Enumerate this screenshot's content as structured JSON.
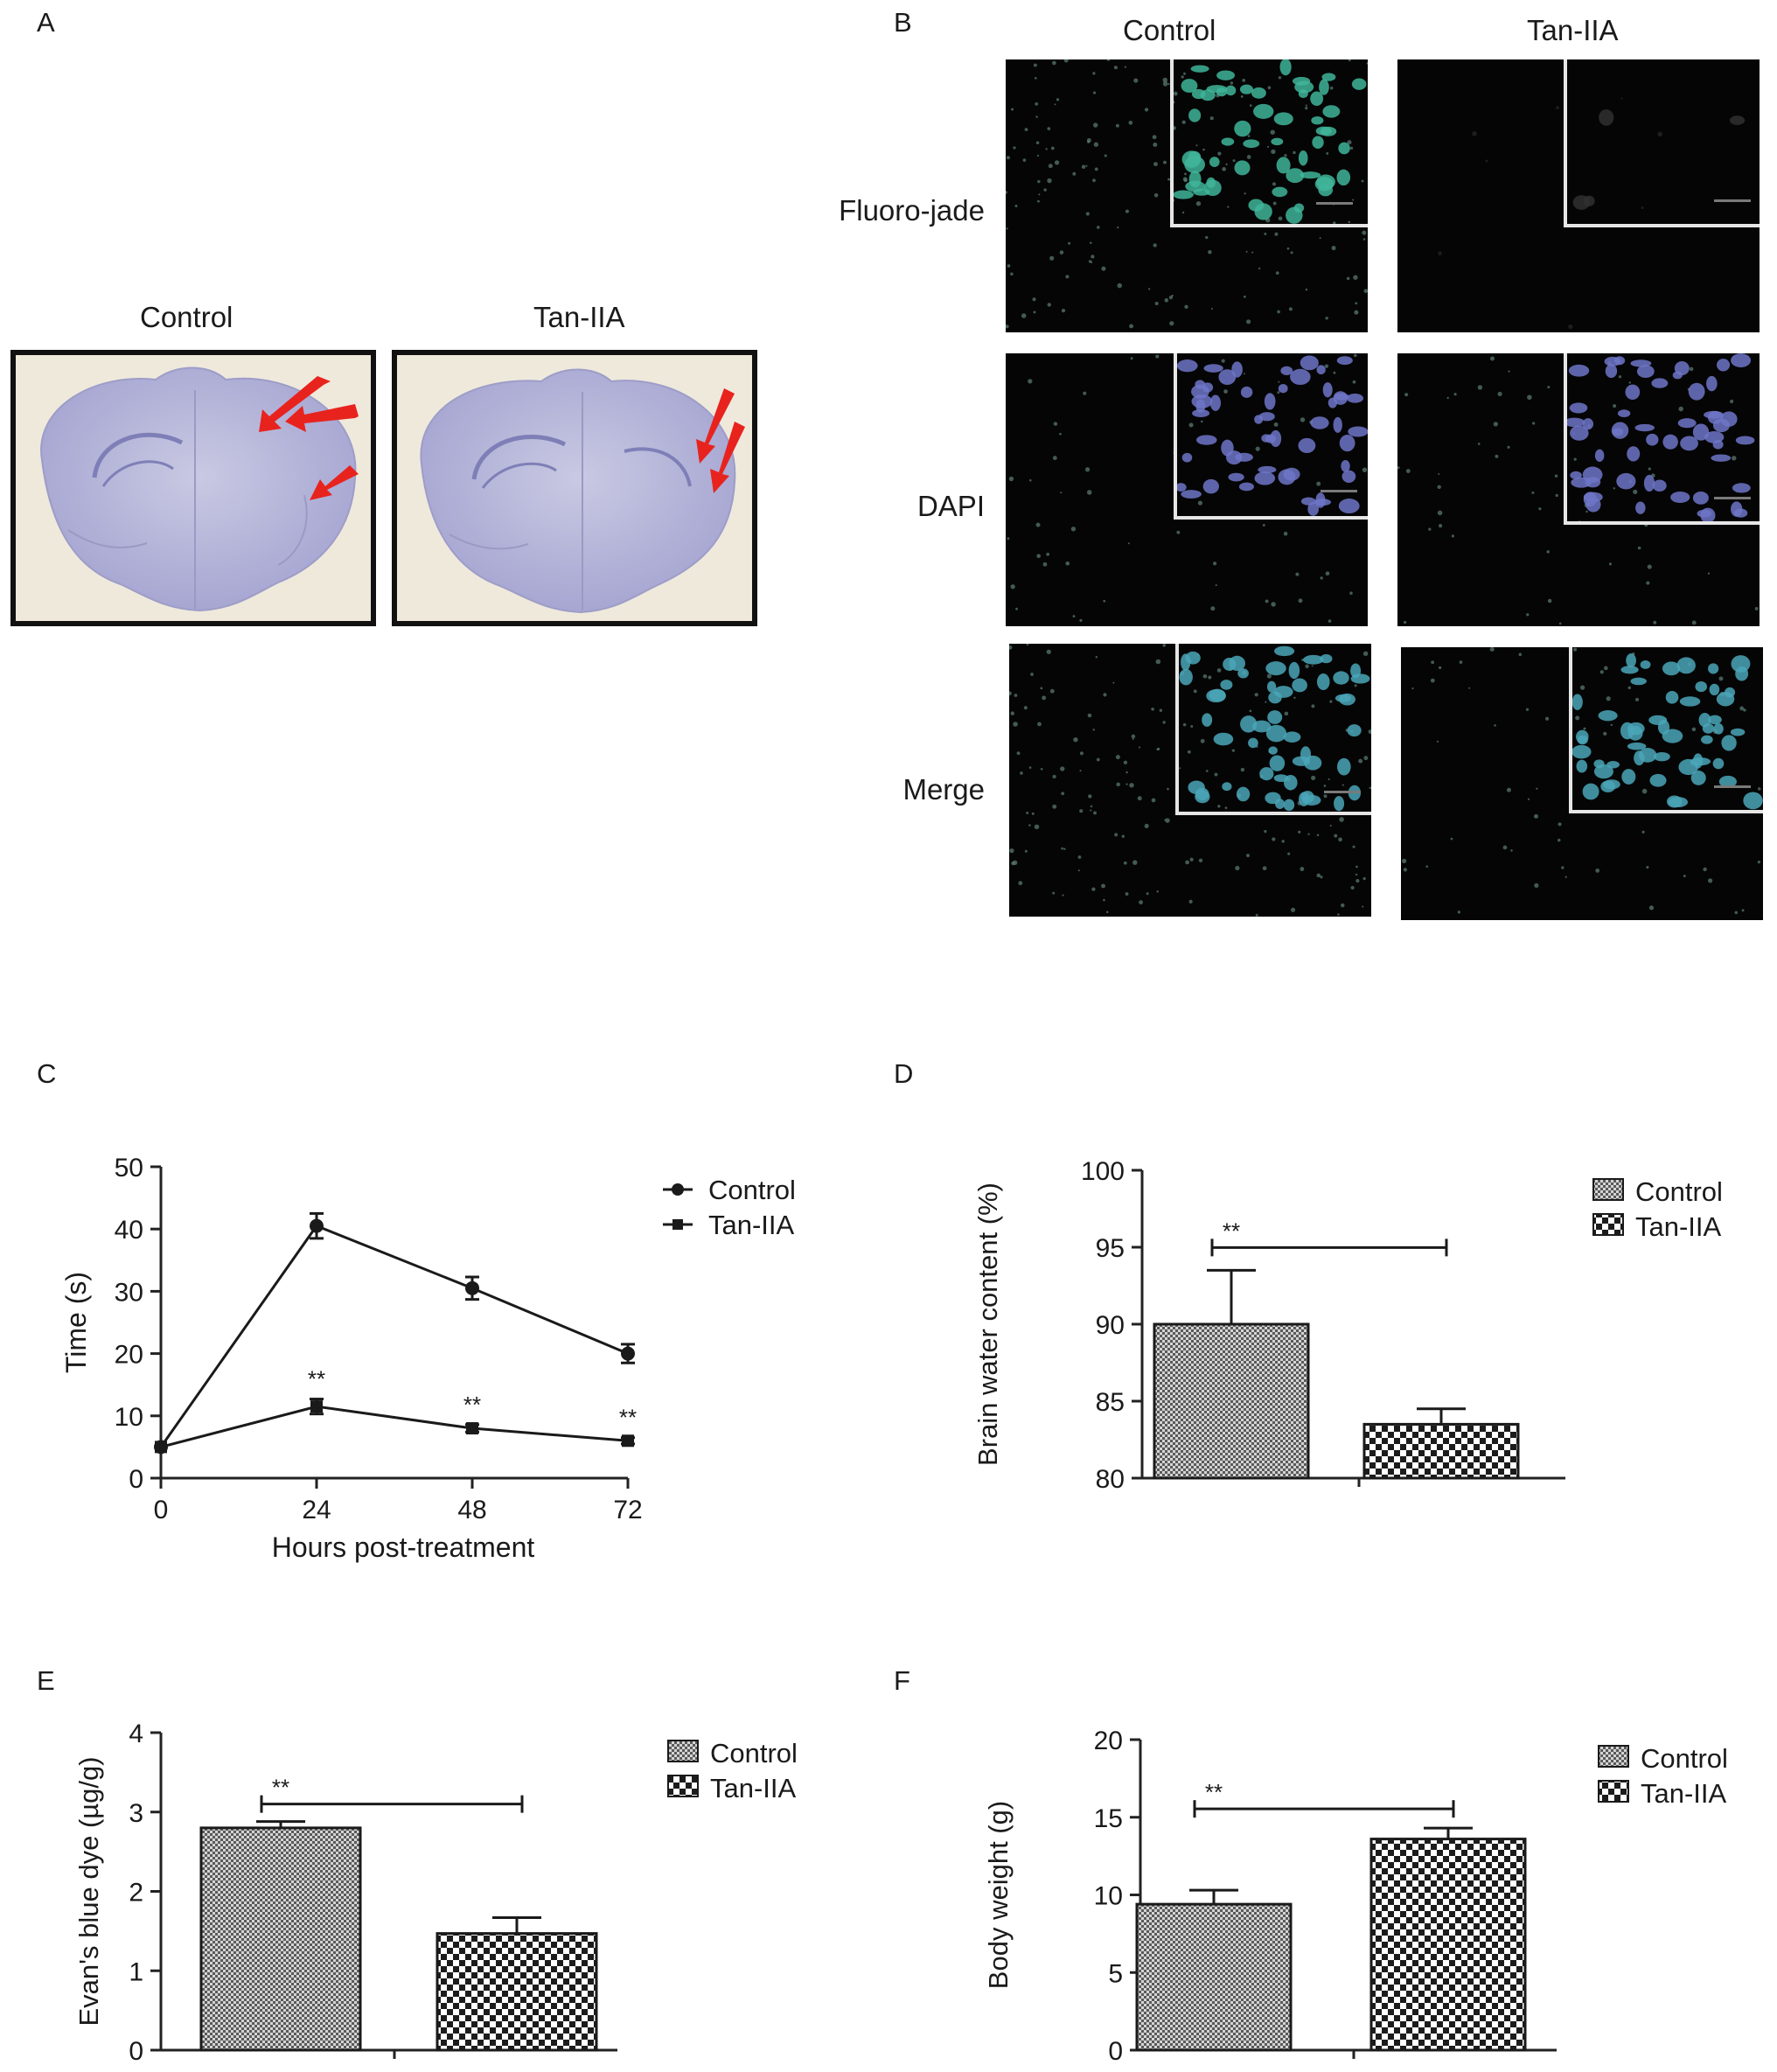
{
  "figure": {
    "panels": {
      "A": {
        "label": "A",
        "captions": [
          "Control",
          "Tan-IIA"
        ]
      },
      "B": {
        "label": "B",
        "columns": [
          "Control",
          "Tan-IIA"
        ],
        "rows": [
          "Fluoro-jade",
          "DAPI",
          "Merge"
        ]
      },
      "C": {
        "label": "C"
      },
      "D": {
        "label": "D"
      },
      "E": {
        "label": "E"
      },
      "F": {
        "label": "F"
      }
    },
    "micro_colors": {
      "fluoro": "#3fb59a",
      "dapi": "#6f76c8",
      "merge": "#4aa6b8"
    },
    "arrow_color": "#e8231e"
  },
  "chart_data": [
    {
      "panel": "C",
      "type": "line",
      "x": [
        0,
        24,
        48,
        72
      ],
      "xticks": [
        "0",
        "24",
        "48",
        "72"
      ],
      "yticks": [
        "0",
        "10",
        "20",
        "30",
        "40",
        "50"
      ],
      "ylim": [
        0,
        50
      ],
      "xlabel": "Hours post-treatment",
      "ylabel": "Time (s)",
      "series": [
        {
          "name": "Control",
          "marker": "circle",
          "values": [
            5,
            40.5,
            30.5,
            20
          ],
          "errors": [
            0,
            2,
            1.8,
            1.5
          ]
        },
        {
          "name": "Tan-IIA",
          "marker": "square",
          "values": [
            5,
            11.5,
            8,
            6
          ],
          "errors": [
            0,
            1.2,
            0.6,
            0.5
          ]
        }
      ],
      "annotations": [
        "**",
        "**",
        "**"
      ],
      "legend": "top-right"
    },
    {
      "panel": "D",
      "type": "bar",
      "categories": [
        "Control",
        "Tan-IIA"
      ],
      "values": [
        90,
        83.5
      ],
      "errors": [
        3.5,
        1
      ],
      "ylim": [
        80,
        100
      ],
      "yticks": [
        "80",
        "85",
        "90",
        "95",
        "100"
      ],
      "ylabel": "Brain water content (%)",
      "significance": "**",
      "legend": "top-right"
    },
    {
      "panel": "E",
      "type": "bar",
      "categories": [
        "Control",
        "Tan-IIA"
      ],
      "values": [
        2.8,
        1.47
      ],
      "errors": [
        0.08,
        0.2
      ],
      "ylim": [
        0,
        4
      ],
      "yticks": [
        "0",
        "1",
        "2",
        "3",
        "4"
      ],
      "ylabel": "Evan's blue dye (µg/g)",
      "significance": "**",
      "legend": "top-right"
    },
    {
      "panel": "F",
      "type": "bar",
      "categories": [
        "Control",
        "Tan-IIA"
      ],
      "values": [
        9.4,
        13.6
      ],
      "errors": [
        0.9,
        0.7
      ],
      "ylim": [
        0,
        20
      ],
      "yticks": [
        "0",
        "5",
        "10",
        "15",
        "20"
      ],
      "ylabel": "Body weight (g)",
      "significance": "**",
      "legend": "top-right"
    }
  ]
}
